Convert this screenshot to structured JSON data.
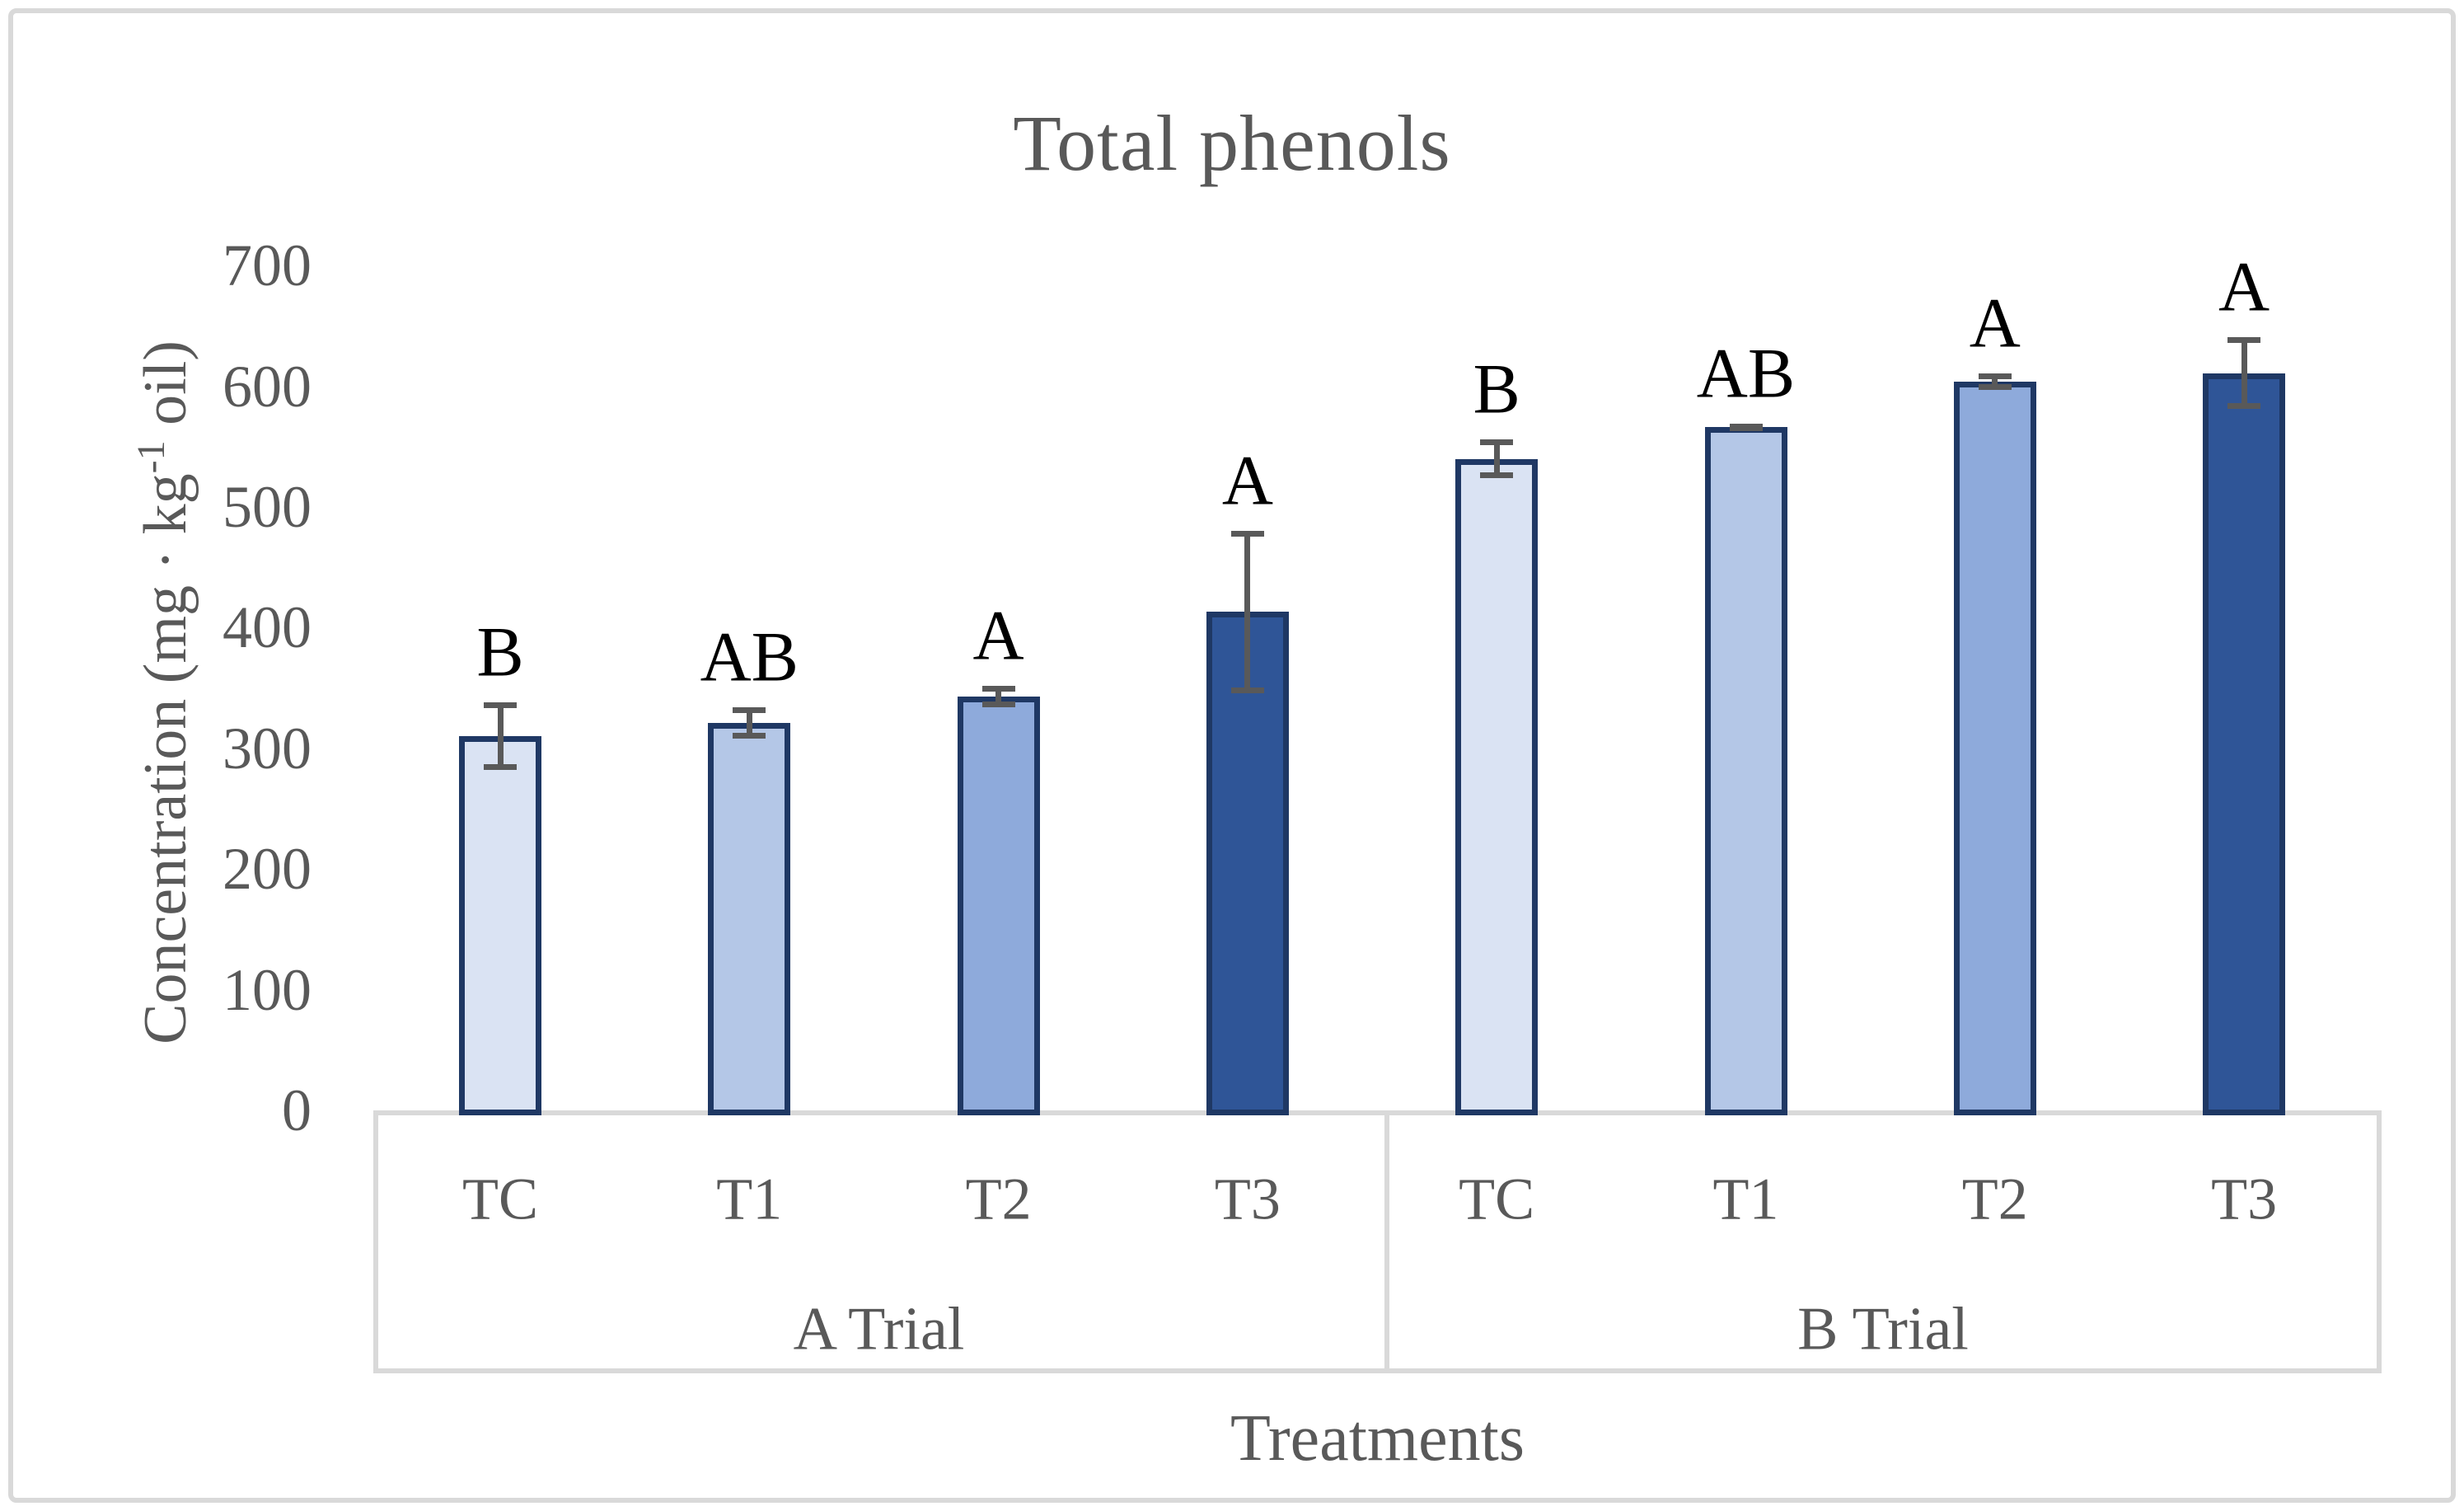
{
  "chart_data": {
    "type": "bar",
    "title": "Total phenols",
    "xlabel": "Treatments",
    "ylabel": "Concentration (mg · kg⁻¹ oil)",
    "ylabel_parts": {
      "main": "Concentration (mg · kg",
      "sup": "-1",
      "end": " oil)"
    },
    "ylim": [
      0,
      700
    ],
    "ytick_step": 100,
    "yticks": [
      0,
      100,
      200,
      300,
      400,
      500,
      600,
      700
    ],
    "legend": "none",
    "grid": "off",
    "groups": [
      {
        "label": "A Trial",
        "bars": [
          {
            "category": "TC",
            "value": 312,
            "error": 28,
            "letter": "B",
            "fill": "#dae3f3"
          },
          {
            "category": "T1",
            "value": 323,
            "error": 13,
            "letter": "AB",
            "fill": "#b4c7e7"
          },
          {
            "category": "T2",
            "value": 345,
            "error": 9,
            "letter": "A",
            "fill": "#8eaadb"
          },
          {
            "category": "T3",
            "value": 415,
            "error": 67,
            "letter": "A",
            "fill": "#2f5597"
          }
        ]
      },
      {
        "label": "B Trial",
        "bars": [
          {
            "category": "TC",
            "value": 542,
            "error": 16,
            "letter": "B",
            "fill": "#dae3f3"
          },
          {
            "category": "T1",
            "value": 568,
            "error": 3,
            "letter": "AB",
            "fill": "#b4c7e7"
          },
          {
            "category": "T2",
            "value": 606,
            "error": 7,
            "letter": "A",
            "fill": "#8eaadb"
          },
          {
            "category": "T3",
            "value": 613,
            "error": 30,
            "letter": "A",
            "fill": "#2f5597"
          }
        ]
      }
    ],
    "colors": {
      "bar_border": "#1f3864",
      "error_bar": "#595959",
      "axis_table_lines": "#d9d9d9",
      "text": "#595959",
      "letters": "#000000",
      "frame_border": "#d9d9d9",
      "background": "#ffffff"
    }
  }
}
